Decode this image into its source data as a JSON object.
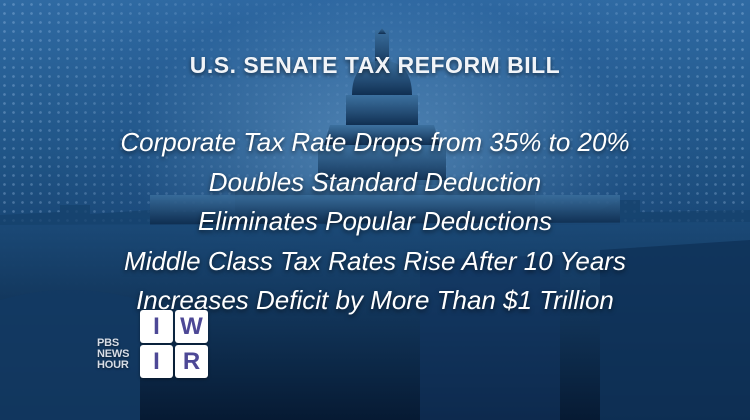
{
  "title": "U.S. SENATE TAX REFORM BILL",
  "points": [
    "Corporate Tax Rate Drops from 35% to 20%",
    "Doubles Standard Deduction",
    "Eliminates Popular Deductions",
    "Middle Class Tax Rates Rise After 10 Years",
    "Increases Deficit by More Than $1 Trillion"
  ],
  "logo": {
    "line1": "PBS",
    "line2": "NEWS",
    "line3": "HOUR",
    "tiles": [
      "I",
      "W",
      "I",
      "R"
    ]
  }
}
